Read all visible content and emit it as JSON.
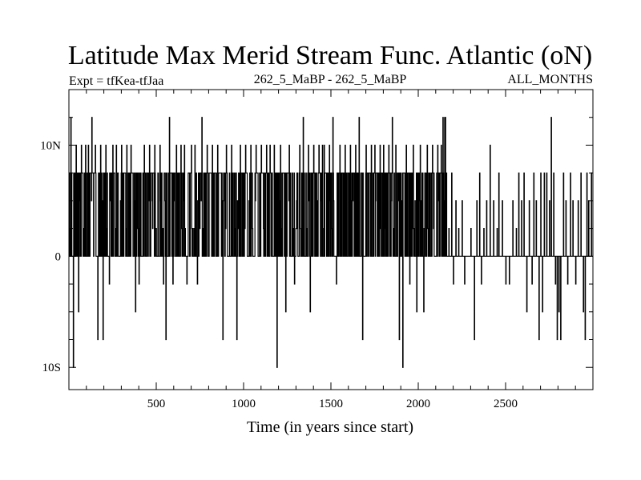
{
  "chart_data": {
    "type": "line",
    "title": "Latitude Max Merid Stream Func. Atlantic (oN)",
    "subtitle_left": "Expt = tfKea-tfJaa",
    "subtitle_center": "262_5_MaBP - 262_5_MaBP",
    "subtitle_right": "ALL_MONTHS",
    "xlabel": "Time (in years since start)",
    "ylabel": "",
    "xlim": [
      0,
      3000
    ],
    "ylim": [
      -12,
      15
    ],
    "x_ticks": [
      {
        "value": 500,
        "label": "500"
      },
      {
        "value": 1000,
        "label": "1000"
      },
      {
        "value": 1500,
        "label": "1500"
      },
      {
        "value": 2000,
        "label": "2000"
      },
      {
        "value": 2500,
        "label": "2500"
      }
    ],
    "y_ticks": [
      {
        "value": 10,
        "label": "10N"
      },
      {
        "value": 0,
        "label": "0"
      },
      {
        "value": -10,
        "label": "10S"
      }
    ],
    "series": [
      {
        "color": "#000000",
        "x_start": 1,
        "x_step": 1,
        "dense_end": 2150,
        "levels": [
          -10,
          -7.5,
          -5,
          -2.5,
          0,
          2.5,
          5,
          7.5,
          10,
          12.5
        ],
        "spikes_dense": [
          [
            10,
            12.5
          ],
          [
            25,
            -10
          ],
          [
            40,
            10
          ],
          [
            55,
            -5
          ],
          [
            70,
            10
          ],
          [
            95,
            10
          ],
          [
            110,
            10
          ],
          [
            130,
            12.5
          ],
          [
            150,
            10
          ],
          [
            165,
            -7.5
          ],
          [
            180,
            10
          ],
          [
            195,
            -7.5
          ],
          [
            210,
            10
          ],
          [
            230,
            -2.5
          ],
          [
            250,
            10
          ],
          [
            270,
            10
          ],
          [
            300,
            10
          ],
          [
            330,
            10
          ],
          [
            355,
            10
          ],
          [
            380,
            -5
          ],
          [
            400,
            -2.5
          ],
          [
            430,
            10
          ],
          [
            460,
            10
          ],
          [
            490,
            10
          ],
          [
            520,
            10
          ],
          [
            540,
            -2.5
          ],
          [
            555,
            -7.5
          ],
          [
            575,
            12.5
          ],
          [
            595,
            -2.5
          ],
          [
            615,
            10
          ],
          [
            640,
            10
          ],
          [
            660,
            10
          ],
          [
            675,
            -2.5
          ],
          [
            700,
            10
          ],
          [
            720,
            10
          ],
          [
            735,
            -2.5
          ],
          [
            760,
            12.5
          ],
          [
            790,
            10
          ],
          [
            820,
            10
          ],
          [
            850,
            10
          ],
          [
            880,
            -7.5
          ],
          [
            900,
            10
          ],
          [
            930,
            10
          ],
          [
            960,
            -7.5
          ],
          [
            980,
            10
          ],
          [
            1010,
            10
          ],
          [
            1040,
            10
          ],
          [
            1070,
            10
          ],
          [
            1100,
            10
          ],
          [
            1130,
            10
          ],
          [
            1150,
            10
          ],
          [
            1175,
            10
          ],
          [
            1190,
            -10
          ],
          [
            1210,
            10
          ],
          [
            1240,
            -5
          ],
          [
            1260,
            10
          ],
          [
            1290,
            -2.5
          ],
          [
            1320,
            10
          ],
          [
            1340,
            12.5
          ],
          [
            1370,
            10
          ],
          [
            1380,
            -5
          ],
          [
            1400,
            10
          ],
          [
            1430,
            10
          ],
          [
            1450,
            10
          ],
          [
            1460,
            10
          ],
          [
            1490,
            10
          ],
          [
            1510,
            12.5
          ],
          [
            1530,
            -2.5
          ],
          [
            1550,
            10
          ],
          [
            1580,
            10
          ],
          [
            1610,
            10
          ],
          [
            1640,
            10
          ],
          [
            1660,
            12.5
          ],
          [
            1680,
            -7.5
          ],
          [
            1700,
            10
          ],
          [
            1730,
            10
          ],
          [
            1750,
            10
          ],
          [
            1780,
            10
          ],
          [
            1800,
            10
          ],
          [
            1830,
            10
          ],
          [
            1850,
            12.5
          ],
          [
            1870,
            10
          ],
          [
            1890,
            -7.5
          ],
          [
            1910,
            -10
          ],
          [
            1930,
            10
          ],
          [
            1950,
            -2.5
          ],
          [
            1970,
            10
          ],
          [
            1990,
            -5
          ],
          [
            2010,
            10
          ],
          [
            2030,
            -5
          ],
          [
            2050,
            10
          ],
          [
            2080,
            10
          ],
          [
            2110,
            10
          ],
          [
            2130,
            10
          ],
          [
            2140,
            12.5
          ]
        ],
        "spikes_sparse": [
          [
            2150,
            12.5
          ],
          [
            2155,
            12.5
          ],
          [
            2160,
            7.5
          ],
          [
            2175,
            2.5
          ],
          [
            2190,
            7.5
          ],
          [
            2200,
            -2.5
          ],
          [
            2215,
            5
          ],
          [
            2230,
            2.5
          ],
          [
            2250,
            5
          ],
          [
            2265,
            -2.5
          ],
          [
            2280,
            0
          ],
          [
            2300,
            2.5
          ],
          [
            2320,
            -7.5
          ],
          [
            2335,
            5
          ],
          [
            2350,
            7.5
          ],
          [
            2360,
            -2.5
          ],
          [
            2375,
            2.5
          ],
          [
            2390,
            5
          ],
          [
            2410,
            10
          ],
          [
            2430,
            5
          ],
          [
            2450,
            2.5
          ],
          [
            2460,
            7.5
          ],
          [
            2480,
            5
          ],
          [
            2500,
            -2.5
          ],
          [
            2520,
            -2.5
          ],
          [
            2540,
            5
          ],
          [
            2560,
            2.5
          ],
          [
            2575,
            7.5
          ],
          [
            2590,
            5
          ],
          [
            2605,
            7.5
          ],
          [
            2620,
            -5
          ],
          [
            2635,
            5
          ],
          [
            2650,
            -2.5
          ],
          [
            2660,
            7.5
          ],
          [
            2675,
            5
          ],
          [
            2690,
            -7.5
          ],
          [
            2700,
            7.5
          ],
          [
            2710,
            -5
          ],
          [
            2720,
            7.5
          ],
          [
            2735,
            7.5
          ],
          [
            2750,
            5
          ],
          [
            2760,
            12.5
          ],
          [
            2775,
            7.5
          ],
          [
            2785,
            -2.5
          ],
          [
            2795,
            -7.5
          ],
          [
            2805,
            -5
          ],
          [
            2815,
            -7.5
          ],
          [
            2830,
            7.5
          ],
          [
            2845,
            5
          ],
          [
            2855,
            -2.5
          ],
          [
            2870,
            7.5
          ],
          [
            2885,
            5
          ],
          [
            2900,
            -2.5
          ],
          [
            2915,
            5
          ],
          [
            2930,
            7.5
          ],
          [
            2945,
            -5
          ],
          [
            2955,
            -7.5
          ],
          [
            2965,
            7.5
          ],
          [
            2975,
            5
          ],
          [
            2990,
            7.5
          ]
        ]
      }
    ],
    "grid": false
  }
}
